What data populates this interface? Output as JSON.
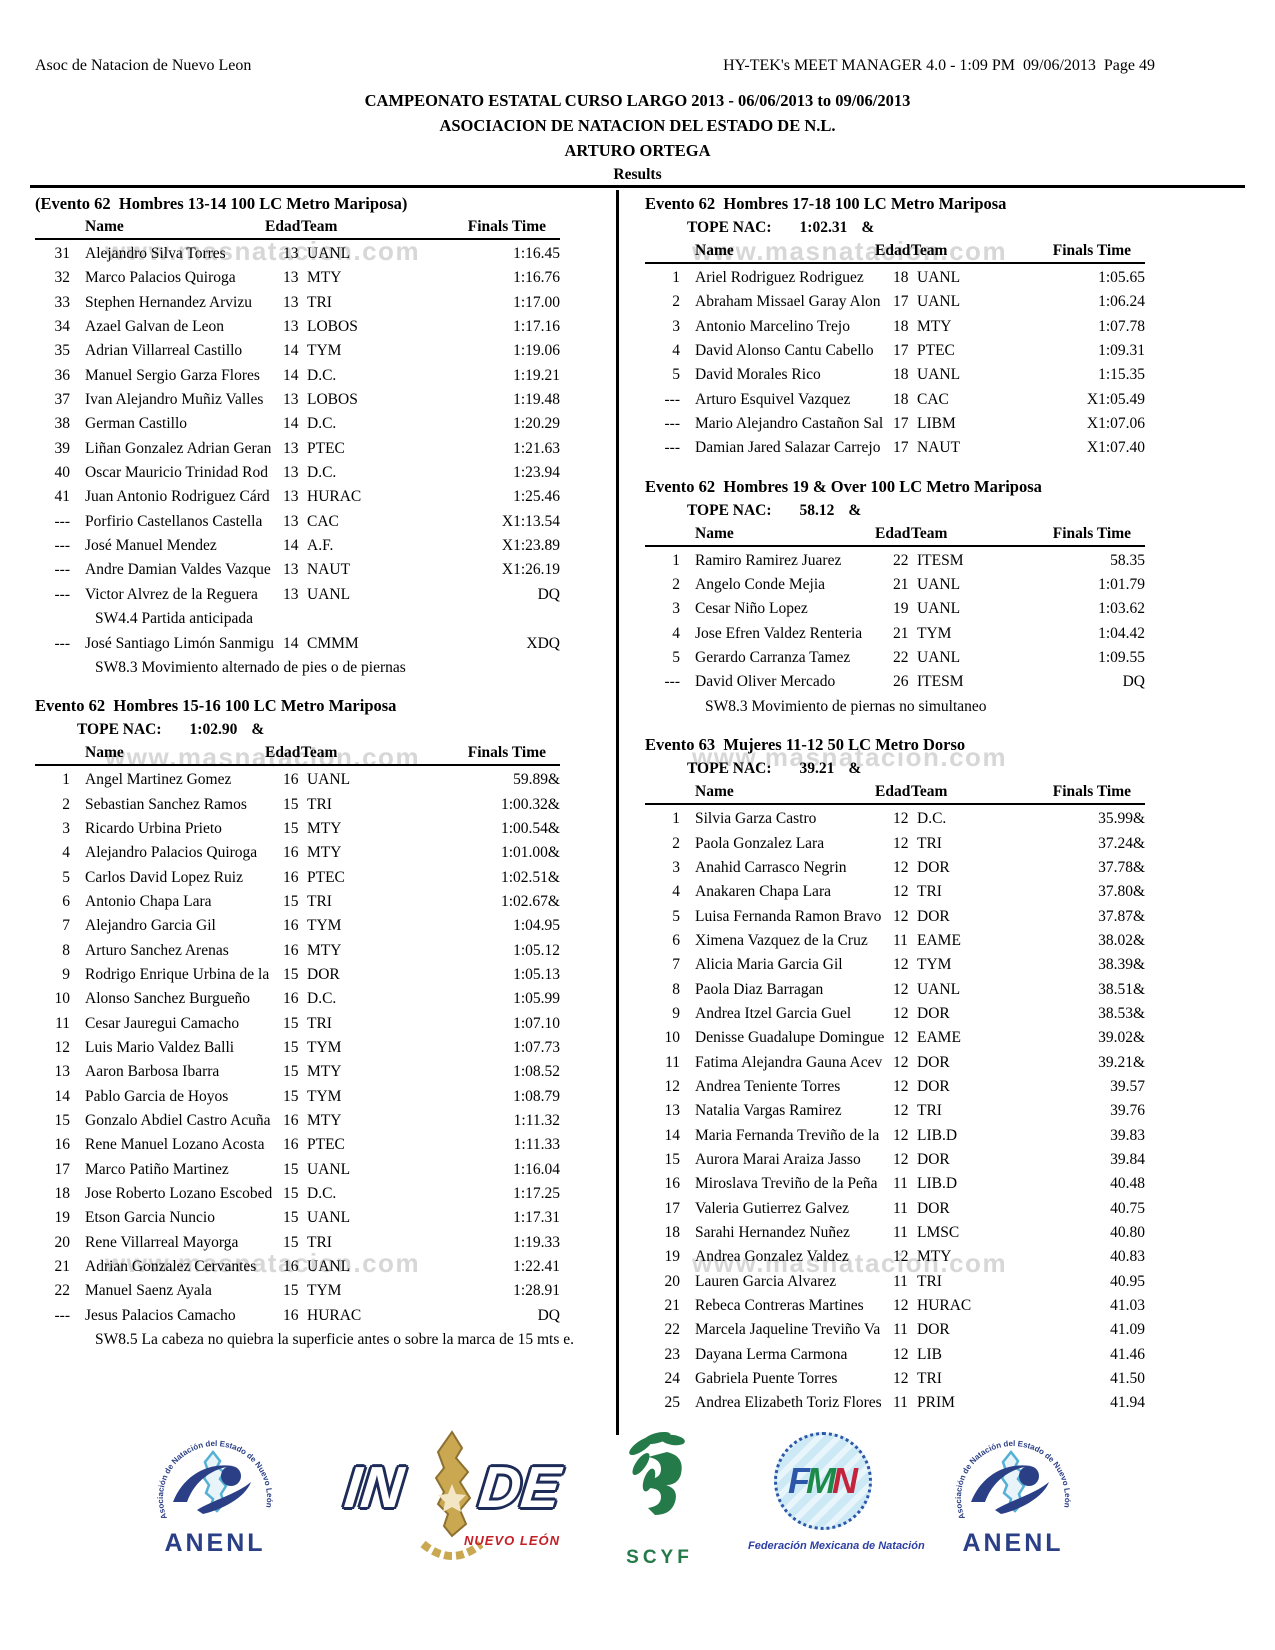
{
  "page_header": {
    "left": "Asoc de Natacion de Nuevo Leon",
    "right": "HY-TEK's MEET MANAGER 4.0 - 1:09 PM  09/06/2013  Page 49"
  },
  "titles": {
    "line1": "CAMPEONATO ESTATAL CURSO LARGO 2013 - 06/06/2013 to 09/06/2013",
    "line2": "ASOCIACION DE NATACION DEL ESTADO DE N.L.",
    "line3": "ARTURO ORTEGA",
    "results": "Results"
  },
  "watermark": "www.masnatacion.com",
  "tope_label": "TOPE NAC:",
  "tope_marker": "&",
  "table_columns": [
    "Name",
    "Edad",
    "Team",
    "Finals Time"
  ],
  "events": [
    {
      "column": "left",
      "title": "(Evento 62  Hombres 13-14 100 LC Metro Mariposa)",
      "tope": null,
      "rows": [
        [
          "31",
          "Alejandro Silva Torres",
          "13",
          "UANL",
          "1:16.45"
        ],
        [
          "32",
          "Marco Palacios Quiroga",
          "13",
          "MTY",
          "1:16.76"
        ],
        [
          "33",
          "Stephen Hernandez Arvizu",
          "13",
          "TRI",
          "1:17.00"
        ],
        [
          "34",
          "Azael Galvan de Leon",
          "13",
          "LOBOS",
          "1:17.16"
        ],
        [
          "35",
          "Adrian Villarreal Castillo",
          "14",
          "TYM",
          "1:19.06"
        ],
        [
          "36",
          "Manuel Sergio Garza Flores",
          "14",
          "D.C.",
          "1:19.21"
        ],
        [
          "37",
          "Ivan Alejandro Muñiz Valles",
          "13",
          "LOBOS",
          "1:19.48"
        ],
        [
          "38",
          "German Castillo",
          "14",
          "D.C.",
          "1:20.29"
        ],
        [
          "39",
          "Liñan Gonzalez Adrian Geran",
          "13",
          "PTEC",
          "1:21.63"
        ],
        [
          "40",
          "Oscar Mauricio Trinidad  Rod",
          "13",
          "D.C.",
          "1:23.94"
        ],
        [
          "41",
          "Juan Antonio Rodriguez Cárd",
          "13",
          "HURAC",
          "1:25.46"
        ],
        [
          "---",
          "Porfirio Castellanos Castella",
          "13",
          "CAC",
          "X1:13.54"
        ],
        [
          "---",
          "José Manuel Mendez",
          "14",
          "A.F.",
          "X1:23.89"
        ],
        [
          "---",
          "Andre Damian Valdes Vazque",
          "13",
          "NAUT",
          "X1:26.19"
        ],
        [
          "---",
          "Victor Alvrez de la Reguera",
          "13",
          "UANL",
          "DQ",
          "SW4.4 Partida anticipada"
        ],
        [
          "---",
          "José Santiago Limón Sanmigu",
          "14",
          "CMMM",
          "XDQ",
          "SW8.3 Movimiento alternado de pies o de piernas"
        ]
      ]
    },
    {
      "column": "left",
      "title": "Evento 62  Hombres 15-16 100 LC Metro Mariposa",
      "tope": "1:02.90",
      "rows": [
        [
          "1",
          "Angel Martinez Gomez",
          "16",
          "UANL",
          "59.89&"
        ],
        [
          "2",
          "Sebastian Sanchez Ramos",
          "15",
          "TRI",
          "1:00.32&"
        ],
        [
          "3",
          "Ricardo Urbina Prieto",
          "15",
          "MTY",
          "1:00.54&"
        ],
        [
          "4",
          "Alejandro Palacios Quiroga",
          "16",
          "MTY",
          "1:01.00&"
        ],
        [
          "5",
          "Carlos David Lopez Ruiz",
          "16",
          "PTEC",
          "1:02.51&"
        ],
        [
          "6",
          "Antonio Chapa Lara",
          "15",
          "TRI",
          "1:02.67&"
        ],
        [
          "7",
          "Alejandro Garcia Gil",
          "16",
          "TYM",
          "1:04.95"
        ],
        [
          "8",
          "Arturo Sanchez Arenas",
          "16",
          "MTY",
          "1:05.12"
        ],
        [
          "9",
          "Rodrigo Enrique Urbina de la",
          "15",
          "DOR",
          "1:05.13"
        ],
        [
          "10",
          "Alonso Sanchez Burgueño",
          "16",
          "D.C.",
          "1:05.99"
        ],
        [
          "11",
          "Cesar Jauregui Camacho",
          "15",
          "TRI",
          "1:07.10"
        ],
        [
          "12",
          "Luis Mario Valdez Balli",
          "15",
          "TYM",
          "1:07.73"
        ],
        [
          "13",
          "Aaron Barbosa Ibarra",
          "15",
          "MTY",
          "1:08.52"
        ],
        [
          "14",
          "Pablo Garcia de Hoyos",
          "15",
          "TYM",
          "1:08.79"
        ],
        [
          "15",
          "Gonzalo Abdiel Castro Acuña",
          "16",
          "MTY",
          "1:11.32"
        ],
        [
          "16",
          "Rene Manuel Lozano Acosta",
          "16",
          "PTEC",
          "1:11.33"
        ],
        [
          "17",
          "Marco Patiño Martinez",
          "15",
          "UANL",
          "1:16.04"
        ],
        [
          "18",
          "Jose Roberto Lozano Escobed",
          "15",
          "D.C.",
          "1:17.25"
        ],
        [
          "19",
          "Etson Garcia Nuncio",
          "15",
          "UANL",
          "1:17.31"
        ],
        [
          "20",
          "Rene Villarreal Mayorga",
          "15",
          "TRI",
          "1:19.33"
        ],
        [
          "21",
          "Adrian Gonzalez Cervantes",
          "16",
          "UANL",
          "1:22.41"
        ],
        [
          "22",
          "Manuel Saenz Ayala",
          "15",
          "TYM",
          "1:28.91"
        ],
        [
          "---",
          "Jesus Palacios Camacho",
          "16",
          "HURAC",
          "DQ",
          "SW8.5 La cabeza no quiebra la superficie antes o sobre la marca de 15 mts e."
        ]
      ]
    },
    {
      "column": "right",
      "title": "Evento 62  Hombres 17-18 100 LC Metro Mariposa",
      "tope": "1:02.31",
      "rows": [
        [
          "1",
          "Ariel Rodriguez Rodriguez",
          "18",
          "UANL",
          "1:05.65"
        ],
        [
          "2",
          "Abraham Missael Garay Alon",
          "17",
          "UANL",
          "1:06.24"
        ],
        [
          "3",
          "Antonio Marcelino Trejo",
          "18",
          "MTY",
          "1:07.78"
        ],
        [
          "4",
          "David Alonso Cantu Cabello",
          "17",
          "PTEC",
          "1:09.31"
        ],
        [
          "5",
          "David Morales Rico",
          "18",
          "UANL",
          "1:15.35"
        ],
        [
          "---",
          "Arturo Esquivel Vazquez",
          "18",
          "CAC",
          "X1:05.49"
        ],
        [
          "---",
          "Mario Alejandro Castañon Sal",
          "17",
          "LIBM",
          "X1:07.06"
        ],
        [
          "---",
          "Damian Jared Salazar Carrejo",
          "17",
          "NAUT",
          "X1:07.40"
        ]
      ]
    },
    {
      "column": "right",
      "title": "Evento 62  Hombres 19 & Over 100 LC Metro Mariposa",
      "tope": "58.12",
      "rows": [
        [
          "1",
          "Ramiro Ramirez Juarez",
          "22",
          "ITESM",
          "58.35"
        ],
        [
          "2",
          "Angelo Conde Mejia",
          "21",
          "UANL",
          "1:01.79"
        ],
        [
          "3",
          "Cesar Niño Lopez",
          "19",
          "UANL",
          "1:03.62"
        ],
        [
          "4",
          "Jose Efren Valdez Renteria",
          "21",
          "TYM",
          "1:04.42"
        ],
        [
          "5",
          "Gerardo Carranza Tamez",
          "22",
          "UANL",
          "1:09.55"
        ],
        [
          "---",
          "David Oliver Mercado",
          "26",
          "ITESM",
          "DQ",
          "SW8.3 Movimiento de piernas no simultaneo"
        ]
      ]
    },
    {
      "column": "right",
      "title": "Evento 63  Mujeres 11-12 50 LC Metro Dorso",
      "tope": "39.21",
      "rows": [
        [
          "1",
          "Silvia Garza Castro",
          "12",
          "D.C.",
          "35.99&"
        ],
        [
          "2",
          "Paola Gonzalez Lara",
          "12",
          "TRI",
          "37.24&"
        ],
        [
          "3",
          "Anahid Carrasco  Negrin",
          "12",
          "DOR",
          "37.78&"
        ],
        [
          "4",
          "Anakaren Chapa Lara",
          "12",
          "TRI",
          "37.80&"
        ],
        [
          "5",
          "Luisa Fernanda Ramon Bravo",
          "12",
          "DOR",
          "37.87&"
        ],
        [
          "6",
          "Ximena Vazquez de la Cruz",
          "11",
          "EAME",
          "38.02&"
        ],
        [
          "7",
          "Alicia Maria Garcia Gil",
          "12",
          "TYM",
          "38.39&"
        ],
        [
          "8",
          "Paola Diaz Barragan",
          "12",
          "UANL",
          "38.51&"
        ],
        [
          "9",
          "Andrea Itzel Garcia Guel",
          "12",
          "DOR",
          "38.53&"
        ],
        [
          "10",
          "Denisse Guadalupe Domingue",
          "12",
          "EAME",
          "39.02&"
        ],
        [
          "11",
          "Fatima Alejandra Gauna Acev",
          "12",
          "DOR",
          "39.21&"
        ],
        [
          "12",
          "Andrea Teniente Torres",
          "12",
          "DOR",
          "39.57"
        ],
        [
          "13",
          "Natalia Vargas Ramirez",
          "12",
          "TRI",
          "39.76"
        ],
        [
          "14",
          "Maria Fernanda Treviño de la",
          "12",
          "LIB.D",
          "39.83"
        ],
        [
          "15",
          "Aurora Marai Araiza Jasso",
          "12",
          "DOR",
          "39.84"
        ],
        [
          "16",
          "Miroslava Treviño de la Peña",
          "11",
          "LIB.D",
          "40.48"
        ],
        [
          "17",
          "Valeria Gutierrez Galvez",
          "11",
          "DOR",
          "40.75"
        ],
        [
          "18",
          "Sarahi Hernandez Nuñez",
          "11",
          "LMSC",
          "40.80"
        ],
        [
          "19",
          "Andrea Gonzalez Valdez",
          "12",
          "MTY",
          "40.83"
        ],
        [
          "20",
          "Lauren Garcia Alvarez",
          "11",
          "TRI",
          "40.95"
        ],
        [
          "21",
          "Rebeca Contreras Martines",
          "12",
          "HURAC",
          "41.03"
        ],
        [
          "22",
          "Marcela Jaqueline Treviño Va",
          "11",
          "DOR",
          "41.09"
        ],
        [
          "23",
          "Dayana Lerma Carmona",
          "12",
          "LIB",
          "41.46"
        ],
        [
          "24",
          "Gabriela Puente Torres",
          "12",
          "TRI",
          "41.50"
        ],
        [
          "25",
          "Andrea Elizabeth Toriz Flores",
          "11",
          "PRIM",
          "41.94"
        ]
      ]
    }
  ],
  "footer": {
    "anenl": {
      "arc_text": "Asociación de Natación del Estado de Nuevo León",
      "label": "ANENL"
    },
    "inde": {
      "in": "IN",
      "de": "DE",
      "sub": "NUEVO LEÓN"
    },
    "scyf": {
      "label": "SCYF"
    },
    "fmn": {
      "f": "F",
      "m": "M",
      "n": "N",
      "sub": "Federación Mexicana de Natación"
    },
    "colors": {
      "anenl_navy": "#2b3f86",
      "anenl_lightblue": "#54b0d4",
      "inde_navy": "#1c2b57",
      "inde_gold": "#c9a851",
      "inde_red": "#c32027",
      "scyf_green": "#257a4a",
      "fmn_blue": "#2c57a8",
      "fmn_green": "#1d8a4a",
      "fmn_red": "#c3243c",
      "watermark_gray": "#d7d7d7"
    }
  }
}
